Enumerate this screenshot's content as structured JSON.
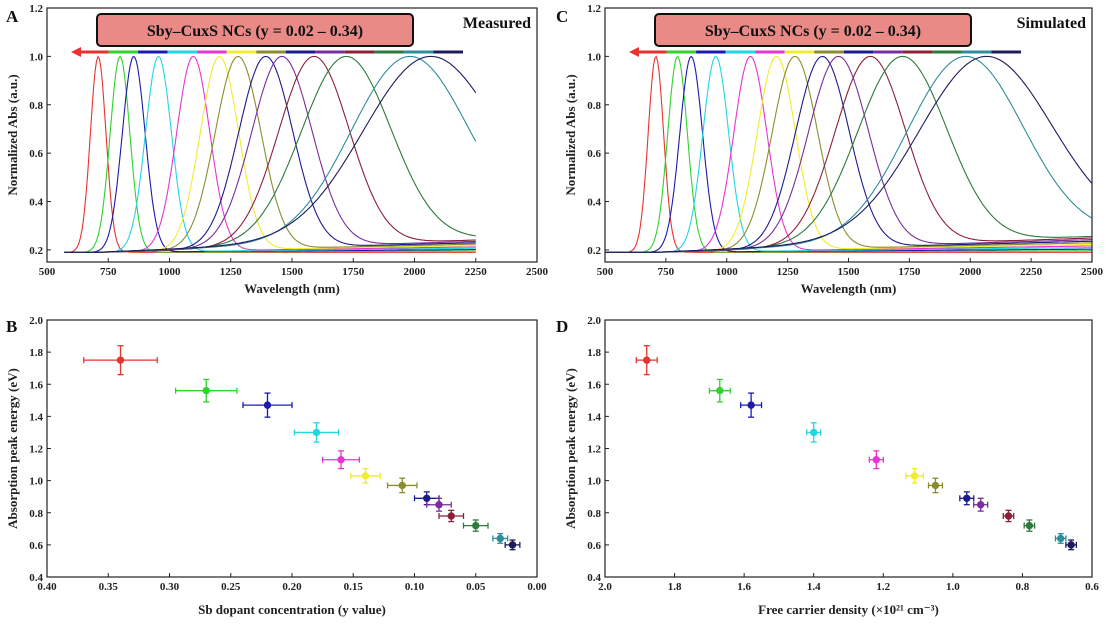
{
  "chart_data": [
    {
      "panel": "A",
      "type": "line",
      "corner_label": "Measured",
      "legend_box": "Sby–CuxS NCs (y = 0.02 – 0.34)",
      "xlabel": "Wavelength (nm)",
      "ylabel": "Normalized Abs (a.u.)",
      "xlim": [
        500,
        2500
      ],
      "ylim": [
        0.15,
        1.2
      ],
      "xticks": [
        "500",
        "750",
        "1000",
        "1250",
        "1500",
        "1750",
        "2000",
        "2250",
        "2500"
      ],
      "yticks": [
        "0.2",
        "0.4",
        "0.6",
        "0.8",
        "1.0",
        "1.2"
      ],
      "x_range_of_curves": [
        570,
        2250
      ],
      "series": [
        {
          "peak_nm": 709,
          "fwhm_nm": 75,
          "color": "#e8322d"
        },
        {
          "peak_nm": 798,
          "fwhm_nm": 95,
          "color": "#2fd22f"
        },
        {
          "peak_nm": 854,
          "fwhm_nm": 110,
          "color": "#1a1ab0"
        },
        {
          "peak_nm": 955,
          "fwhm_nm": 125,
          "color": "#22d6e0"
        },
        {
          "peak_nm": 1097,
          "fwhm_nm": 160,
          "color": "#e636d2"
        },
        {
          "peak_nm": 1204,
          "fwhm_nm": 185,
          "color": "#f2ec2e"
        },
        {
          "peak_nm": 1280,
          "fwhm_nm": 220,
          "color": "#8c8c2e"
        },
        {
          "peak_nm": 1393,
          "fwhm_nm": 260,
          "color": "#1c1c8c"
        },
        {
          "peak_nm": 1459,
          "fwhm_nm": 290,
          "color": "#7a2d9c"
        },
        {
          "peak_nm": 1590,
          "fwhm_nm": 340,
          "color": "#8c2036"
        },
        {
          "peak_nm": 1722,
          "fwhm_nm": 430,
          "color": "#2e7a3c"
        },
        {
          "peak_nm": 1982,
          "fwhm_nm": 560,
          "color": "#2e8c9c"
        },
        {
          "peak_nm": 2067,
          "fwhm_nm": 640,
          "color": "#1c1c5c"
        }
      ]
    },
    {
      "panel": "C",
      "type": "line",
      "corner_label": "Simulated",
      "legend_box": "Sby–CuxS NCs (y = 0.02 – 0.34)",
      "xlabel": "Wavelength (nm)",
      "ylabel": "Normalized Abs (a.u.)",
      "xlim": [
        500,
        2500
      ],
      "ylim": [
        0.15,
        1.2
      ],
      "xticks": [
        "500",
        "750",
        "1000",
        "1250",
        "1500",
        "1750",
        "2000",
        "2250",
        "2500"
      ],
      "yticks": [
        "0.2",
        "0.4",
        "0.6",
        "0.8",
        "1.0",
        "1.2"
      ],
      "x_range_of_curves": [
        500,
        2500
      ],
      "series": [
        {
          "peak_nm": 709,
          "fwhm_nm": 75,
          "color": "#e8322d"
        },
        {
          "peak_nm": 798,
          "fwhm_nm": 95,
          "color": "#2fd22f"
        },
        {
          "peak_nm": 854,
          "fwhm_nm": 110,
          "color": "#1a1ab0"
        },
        {
          "peak_nm": 955,
          "fwhm_nm": 125,
          "color": "#22d6e0"
        },
        {
          "peak_nm": 1097,
          "fwhm_nm": 160,
          "color": "#e636d2"
        },
        {
          "peak_nm": 1204,
          "fwhm_nm": 185,
          "color": "#f2ec2e"
        },
        {
          "peak_nm": 1280,
          "fwhm_nm": 220,
          "color": "#8c8c2e"
        },
        {
          "peak_nm": 1393,
          "fwhm_nm": 260,
          "color": "#1c1c8c"
        },
        {
          "peak_nm": 1459,
          "fwhm_nm": 290,
          "color": "#7a2d9c"
        },
        {
          "peak_nm": 1590,
          "fwhm_nm": 340,
          "color": "#8c2036"
        },
        {
          "peak_nm": 1722,
          "fwhm_nm": 430,
          "color": "#2e7a3c"
        },
        {
          "peak_nm": 1982,
          "fwhm_nm": 560,
          "color": "#2e8c9c"
        },
        {
          "peak_nm": 2067,
          "fwhm_nm": 640,
          "color": "#1c1c5c"
        }
      ]
    },
    {
      "panel": "B",
      "type": "scatter",
      "xlabel": "Sb dopant concentration (y value)",
      "ylabel": "Absorption peak energy (eV)",
      "xlim": [
        0.4,
        0.0
      ],
      "ylim": [
        0.4,
        2.0
      ],
      "xticks": [
        "0.40",
        "0.35",
        "0.30",
        "0.25",
        "0.20",
        "0.15",
        "0.10",
        "0.05",
        "0.00"
      ],
      "yticks": [
        "0.4",
        "0.6",
        "0.8",
        "1.0",
        "1.2",
        "1.4",
        "1.6",
        "1.8",
        "2.0"
      ],
      "points": [
        {
          "x": 0.34,
          "y": 1.75,
          "xerr": 0.03,
          "yerr": 0.09,
          "color": "#e8322d"
        },
        {
          "x": 0.27,
          "y": 1.56,
          "xerr": 0.025,
          "yerr": 0.07,
          "color": "#2fd22f"
        },
        {
          "x": 0.22,
          "y": 1.47,
          "xerr": 0.02,
          "yerr": 0.075,
          "color": "#1a1ab0"
        },
        {
          "x": 0.18,
          "y": 1.3,
          "xerr": 0.018,
          "yerr": 0.06,
          "color": "#22d6e0"
        },
        {
          "x": 0.16,
          "y": 1.13,
          "xerr": 0.015,
          "yerr": 0.055,
          "color": "#e636d2"
        },
        {
          "x": 0.14,
          "y": 1.03,
          "xerr": 0.012,
          "yerr": 0.045,
          "color": "#f2ec2e"
        },
        {
          "x": 0.11,
          "y": 0.97,
          "xerr": 0.012,
          "yerr": 0.045,
          "color": "#8c8c2e"
        },
        {
          "x": 0.09,
          "y": 0.89,
          "xerr": 0.01,
          "yerr": 0.04,
          "color": "#1c1c8c"
        },
        {
          "x": 0.08,
          "y": 0.85,
          "xerr": 0.01,
          "yerr": 0.04,
          "color": "#7a2d9c"
        },
        {
          "x": 0.07,
          "y": 0.78,
          "xerr": 0.01,
          "yerr": 0.035,
          "color": "#8c2036"
        },
        {
          "x": 0.05,
          "y": 0.72,
          "xerr": 0.01,
          "yerr": 0.035,
          "color": "#2e7a3c"
        },
        {
          "x": 0.03,
          "y": 0.64,
          "xerr": 0.006,
          "yerr": 0.03,
          "color": "#2e8c9c"
        },
        {
          "x": 0.02,
          "y": 0.6,
          "xerr": 0.006,
          "yerr": 0.03,
          "color": "#1c1c5c"
        }
      ]
    },
    {
      "panel": "D",
      "type": "scatter",
      "xlabel": "Free carrier density (×10²¹ cm⁻³)",
      "ylabel": "Absorption peak energy (eV)",
      "xlim": [
        2.0,
        0.6
      ],
      "ylim": [
        0.4,
        2.0
      ],
      "xticks": [
        "2.0",
        "1.8",
        "1.6",
        "1.4",
        "1.2",
        "1.0",
        "0.8",
        "0.6"
      ],
      "yticks": [
        "0.4",
        "0.6",
        "0.8",
        "1.0",
        "1.2",
        "1.4",
        "1.6",
        "1.8",
        "2.0"
      ],
      "points": [
        {
          "x": 1.88,
          "y": 1.75,
          "xerr": 0.03,
          "yerr": 0.09,
          "color": "#e8322d"
        },
        {
          "x": 1.67,
          "y": 1.56,
          "xerr": 0.03,
          "yerr": 0.07,
          "color": "#2fd22f"
        },
        {
          "x": 1.58,
          "y": 1.47,
          "xerr": 0.03,
          "yerr": 0.075,
          "color": "#1a1ab0"
        },
        {
          "x": 1.4,
          "y": 1.3,
          "xerr": 0.02,
          "yerr": 0.06,
          "color": "#22d6e0"
        },
        {
          "x": 1.22,
          "y": 1.13,
          "xerr": 0.02,
          "yerr": 0.055,
          "color": "#e636d2"
        },
        {
          "x": 1.11,
          "y": 1.03,
          "xerr": 0.025,
          "yerr": 0.045,
          "color": "#f2ec2e"
        },
        {
          "x": 1.05,
          "y": 0.97,
          "xerr": 0.02,
          "yerr": 0.045,
          "color": "#8c8c2e"
        },
        {
          "x": 0.96,
          "y": 0.89,
          "xerr": 0.02,
          "yerr": 0.04,
          "color": "#1c1c8c"
        },
        {
          "x": 0.92,
          "y": 0.85,
          "xerr": 0.02,
          "yerr": 0.04,
          "color": "#7a2d9c"
        },
        {
          "x": 0.84,
          "y": 0.78,
          "xerr": 0.015,
          "yerr": 0.035,
          "color": "#8c2036"
        },
        {
          "x": 0.78,
          "y": 0.72,
          "xerr": 0.015,
          "yerr": 0.035,
          "color": "#2e7a3c"
        },
        {
          "x": 0.69,
          "y": 0.64,
          "xerr": 0.015,
          "yerr": 0.03,
          "color": "#2e8c9c"
        },
        {
          "x": 0.66,
          "y": 0.6,
          "xerr": 0.015,
          "yerr": 0.03,
          "color": "#1c1c5c"
        }
      ]
    }
  ]
}
